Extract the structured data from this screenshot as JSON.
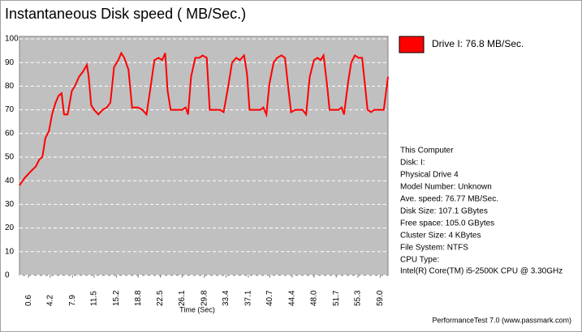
{
  "chart_data": {
    "type": "line",
    "title": "Instantaneous Disk speed ( MB/Sec.)",
    "xlabel": "Time (Sec)",
    "footer": "PerformanceTest 7.0 (www.passmark.com)",
    "info_lines": [
      "This Computer",
      "Disk: I:",
      "Physical Drive 4",
      "Model Number: Unknown",
      "Ave. speed: 76.77 MB/Sec.",
      "Disk Size: 107.1 GBytes",
      "Free space: 105.0 GBytes",
      "Cluster Size: 4 KBytes",
      "File System: NTFS",
      "CPU Type:",
      "Intel(R) Core(TM) i5-2500K CPU @ 3.30GHz"
    ],
    "x": [
      -0.9,
      -0.1,
      1.0,
      1.8,
      2.4,
      2.9,
      3.4,
      4.0,
      4.5,
      5.1,
      5.6,
      6.1,
      6.5,
      7.1,
      7.8,
      8.3,
      9.0,
      9.6,
      10.3,
      10.6,
      11.0,
      11.5,
      12.2,
      12.9,
      13.6,
      14.2,
      14.8,
      15.5,
      16.0,
      16.5,
      17.2,
      17.8,
      18.8,
      19.5,
      20.2,
      20.9,
      21.5,
      22.2,
      22.8,
      23.3,
      23.7,
      24.2,
      25.3,
      26.1,
      26.7,
      27.1,
      27.6,
      28.3,
      29.0,
      29.5,
      30.2,
      30.7,
      31.5,
      32.4,
      33.0,
      33.7,
      34.4,
      35.1,
      35.7,
      36.4,
      36.9,
      37.3,
      38.4,
      39.1,
      39.6,
      40.1,
      40.6,
      41.3,
      41.9,
      42.6,
      43.2,
      43.7,
      44.2,
      44.9,
      46.1,
      46.7,
      47.3,
      48.0,
      48.6,
      49.1,
      49.6,
      50.2,
      50.6,
      51.3,
      52.1,
      52.6,
      53.0,
      53.7,
      54.2,
      54.8,
      55.4,
      56.0,
      56.5,
      56.9,
      57.5,
      58.0,
      58.6,
      59.1,
      59.6,
      60.3
    ],
    "series": [
      {
        "name": "Drive I: 76.8 MB/Sec.",
        "color": "#ff0000",
        "values": [
          38,
          41,
          44,
          46,
          49,
          50,
          58,
          61,
          68,
          73,
          76,
          77,
          68,
          68,
          78,
          80,
          84,
          86,
          89,
          84,
          72,
          70,
          68,
          70,
          71,
          73,
          88,
          91,
          94,
          92,
          87,
          71,
          71,
          70,
          68,
          80,
          91,
          92,
          91,
          94,
          78,
          70,
          70,
          70,
          71,
          68,
          84,
          92,
          92,
          93,
          92,
          70,
          70,
          70,
          69,
          79,
          90,
          92,
          91,
          93,
          85,
          70,
          70,
          70,
          71,
          68,
          81,
          90,
          92,
          93,
          92,
          80,
          69,
          70,
          70,
          68,
          84,
          91,
          92,
          91,
          93,
          80,
          70,
          70,
          70,
          71,
          68,
          82,
          90,
          93,
          92,
          92,
          80,
          70,
          69,
          70,
          70,
          70,
          70,
          84
        ]
      }
    ],
    "xlim": [
      -0.9,
      60.3
    ],
    "xticks": [
      0.6,
      4.2,
      7.9,
      11.5,
      15.2,
      18.8,
      22.5,
      26.1,
      29.8,
      33.4,
      37.1,
      40.7,
      44.4,
      {
        "value": 48,
        "label": "48.0"
      },
      51.7,
      55.3,
      {
        "value": 59,
        "label": "59.0"
      }
    ],
    "ylim": [
      0,
      100
    ],
    "yticks": [
      0,
      10,
      20,
      30,
      40,
      50,
      60,
      70,
      80,
      90,
      100
    ],
    "grid": true,
    "plot_color": "#c0c0c0",
    "grid_color": "#ffffff"
  }
}
